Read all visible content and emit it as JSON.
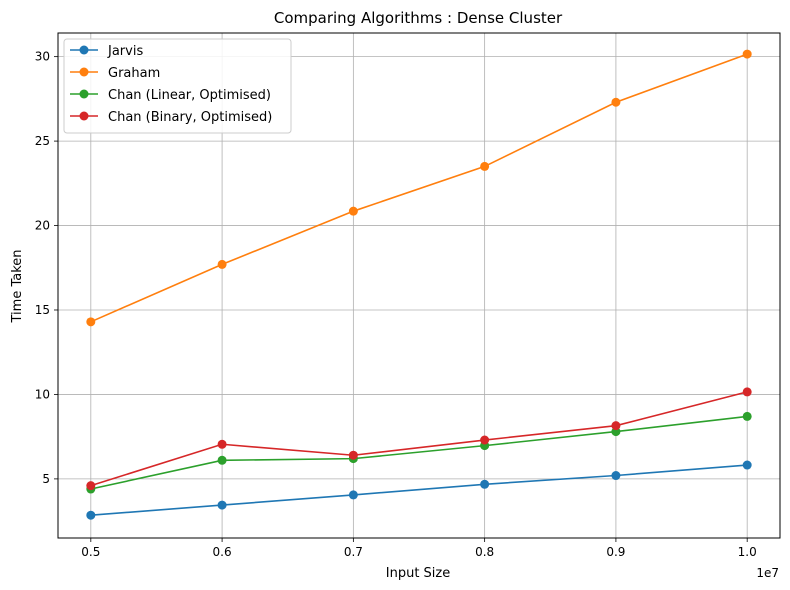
{
  "chart_data": {
    "type": "line",
    "title": "Comparing Algorithms : Dense Cluster",
    "xlabel": "Input Size",
    "ylabel": "Time Taken",
    "x_offset_label": "1e7",
    "x": [
      0.5,
      0.6,
      0.7,
      0.8,
      0.9,
      1.0
    ],
    "x_tick_labels": [
      "0.5",
      "0.6",
      "0.7",
      "0.8",
      "0.9",
      "1.0"
    ],
    "y_ticks": [
      5,
      10,
      15,
      20,
      25,
      30
    ],
    "xlim": [
      0.475,
      1.025
    ],
    "ylim": [
      1.5,
      31.4
    ],
    "grid": true,
    "legend_position": "top-left",
    "series": [
      {
        "name": "Jarvis",
        "color": "#1f77b4",
        "values": [
          2.85,
          3.45,
          4.05,
          4.68,
          5.2,
          5.82
        ]
      },
      {
        "name": "Graham",
        "color": "#ff7f0e",
        "values": [
          14.3,
          17.7,
          20.85,
          23.5,
          27.3,
          30.15
        ]
      },
      {
        "name": "Chan (Linear, Optimised)",
        "color": "#2ca02c",
        "values": [
          4.4,
          6.1,
          6.2,
          6.97,
          7.8,
          8.7
        ]
      },
      {
        "name": "Chan (Binary, Optimised)",
        "color": "#d62728",
        "values": [
          4.6,
          7.05,
          6.4,
          7.3,
          8.15,
          10.15
        ]
      }
    ]
  }
}
